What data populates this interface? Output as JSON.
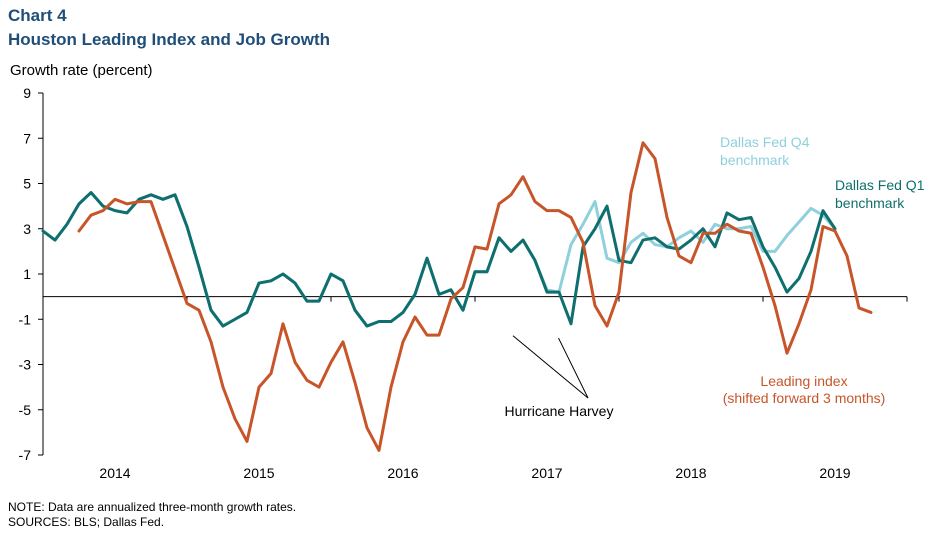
{
  "header": {
    "chart_number": "Chart 4",
    "title": "Houston Leading Index and Job Growth"
  },
  "footer": {
    "note": "NOTE: Data are annualized three-month growth rates.",
    "sources": "SOURCES: BLS; Dallas Fed."
  },
  "colors": {
    "q1": "#0f6f6e",
    "q4": "#8fd0dd",
    "leading": "#c8552a",
    "title": "#1f4e79"
  },
  "chart_data": {
    "type": "line",
    "title": "Houston Leading Index and Job Growth",
    "ylabel": "Growth rate (percent)",
    "ylim": [
      -7,
      9
    ],
    "yticks": [
      9,
      7,
      5,
      3,
      1,
      -1,
      -3,
      -5,
      -7
    ],
    "xticks": [
      {
        "label": "2014",
        "x": 2014.5
      },
      {
        "label": "2015",
        "x": 2015.5
      },
      {
        "label": "2016",
        "x": 2016.5
      },
      {
        "label": "2017",
        "x": 2017.5
      },
      {
        "label": "2018",
        "x": 2018.5
      },
      {
        "label": "2019",
        "x": 2019.5
      }
    ],
    "xlim": [
      2014.0,
      2020.0
    ],
    "grid": false,
    "series": [
      {
        "name": "Dallas Fed Q4 benchmark",
        "start": 2014.0,
        "values": [
          2.9,
          2.5,
          3.2,
          4.1,
          4.6,
          4.0,
          3.8,
          3.7,
          4.3,
          4.5,
          4.3,
          4.5,
          3.1,
          1.3,
          -0.6,
          -1.3,
          -1.0,
          -0.7,
          0.6,
          0.7,
          1.0,
          0.6,
          -0.2,
          -0.2,
          1.0,
          0.7,
          -0.6,
          -1.3,
          -1.1,
          -1.1,
          -0.7,
          0.1,
          1.7,
          0.1,
          0.3,
          -0.6,
          1.1,
          1.1,
          2.6,
          2.0,
          2.5,
          1.6,
          0.3,
          0.2,
          2.3,
          3.2,
          4.2,
          1.7,
          1.5,
          2.4,
          2.8,
          2.3,
          2.2,
          2.6,
          2.9,
          2.4,
          3.2,
          3.0,
          3.0,
          3.1,
          2.0,
          2.0,
          2.7,
          3.3,
          3.9,
          3.6,
          3.0
        ]
      },
      {
        "name": "Dallas Fed Q1 benchmark",
        "start": 2014.0,
        "values": [
          2.9,
          2.5,
          3.2,
          4.1,
          4.6,
          4.0,
          3.8,
          3.7,
          4.3,
          4.5,
          4.3,
          4.5,
          3.1,
          1.3,
          -0.6,
          -1.3,
          -1.0,
          -0.7,
          0.6,
          0.7,
          1.0,
          0.6,
          -0.2,
          -0.2,
          1.0,
          0.7,
          -0.6,
          -1.3,
          -1.1,
          -1.1,
          -0.7,
          0.1,
          1.7,
          0.1,
          0.3,
          -0.6,
          1.1,
          1.1,
          2.6,
          2.0,
          2.5,
          1.6,
          0.2,
          0.2,
          -1.2,
          2.2,
          3.0,
          4.0,
          1.6,
          1.5,
          2.5,
          2.6,
          2.2,
          2.1,
          2.5,
          3.0,
          2.2,
          3.7,
          3.4,
          3.5,
          2.2,
          1.3,
          0.2,
          0.8,
          2.0,
          3.8,
          3.0
        ]
      },
      {
        "name": "Leading index (shifted forward 3 months)",
        "start": 2014.25,
        "values": [
          2.9,
          3.6,
          3.8,
          4.3,
          4.1,
          4.2,
          4.2,
          2.7,
          1.2,
          -0.3,
          -0.6,
          -2.0,
          -4.0,
          -5.4,
          -6.4,
          -4.0,
          -3.4,
          -1.2,
          -2.9,
          -3.7,
          -4.0,
          -2.9,
          -2.0,
          -3.8,
          -5.8,
          -6.8,
          -4.0,
          -2.0,
          -0.9,
          -1.7,
          -1.7,
          -0.1,
          0.4,
          2.2,
          2.1,
          4.1,
          4.5,
          5.3,
          4.2,
          3.8,
          3.8,
          3.5,
          2.4,
          -0.4,
          -1.3,
          0.2,
          4.6,
          6.8,
          6.1,
          3.5,
          1.8,
          1.5,
          2.8,
          2.8,
          3.2,
          2.9,
          2.8,
          1.3,
          -0.4,
          -2.5,
          -1.2,
          0.3,
          3.1,
          2.9,
          1.8,
          -0.5,
          -0.7
        ]
      }
    ],
    "annotations": [
      {
        "text": "Dallas Fed Q4",
        "series": "Dallas Fed Q4 benchmark"
      },
      {
        "text": "benchmark",
        "series": "Dallas Fed Q4 benchmark"
      },
      {
        "text": "Dallas Fed Q1",
        "series": "Dallas Fed Q1 benchmark"
      },
      {
        "text": "benchmark",
        "series": "Dallas Fed Q1 benchmark"
      },
      {
        "text": "Leading index",
        "series": "Leading index (shifted forward 3 months)"
      },
      {
        "text": "(shifted forward 3 months)",
        "series": "Leading index (shifted forward 3 months)"
      },
      {
        "text": "Hurricane Harvey",
        "points": [
          2017.25,
          2017.58
        ]
      }
    ]
  }
}
